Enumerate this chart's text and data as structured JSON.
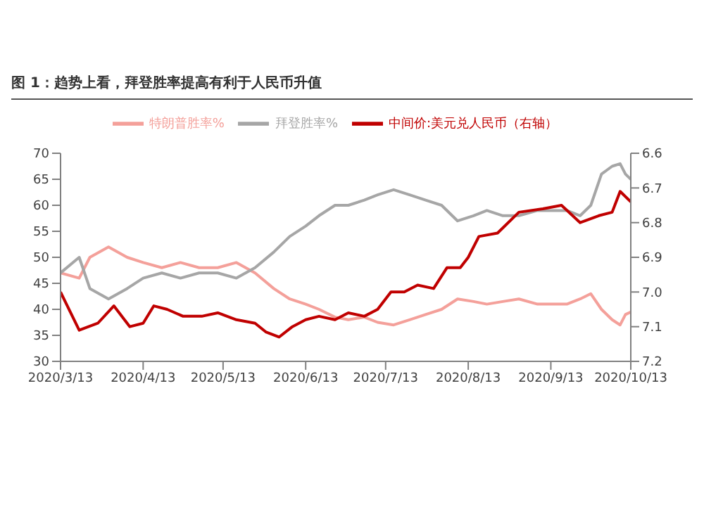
{
  "chart_data": {
    "type": "line",
    "title": "图 1：趋势上看，拜登胜率提高有利于人民币升值",
    "legend": "top",
    "marker": "none",
    "line_style": "solid",
    "xlim": [
      "2020-03-13",
      "2020-10-13"
    ],
    "xticks": [
      {
        "value": "2020-03-13",
        "label": "2020/3/13"
      },
      {
        "value": "2020-04-13",
        "label": "2020/4/13"
      },
      {
        "value": "2020-05-13",
        "label": "2020/5/13"
      },
      {
        "value": "2020-06-13",
        "label": "2020/6/13"
      },
      {
        "value": "2020-07-13",
        "label": "2020/7/13"
      },
      {
        "value": "2020-08-13",
        "label": "2020/8/13"
      },
      {
        "value": "2020-09-13",
        "label": "2020/9/13"
      },
      {
        "value": "2020-10-13",
        "label": "2020/10/13"
      }
    ],
    "ylim": [
      30,
      70
    ],
    "yticks": [
      30,
      35,
      40,
      45,
      50,
      55,
      60,
      65,
      70
    ],
    "y2lim": [
      7.2,
      6.6
    ],
    "y2ticks": [
      6.6,
      6.7,
      6.8,
      6.9,
      {
        "value": 7,
        "label": "7.0"
      },
      7.1,
      7.2
    ],
    "series": [
      {
        "name": "特朗普胜率%",
        "color": "#f4a09a",
        "x": [
          "2020-03-13",
          "2020-03-20",
          "2020-03-24",
          "2020-03-31",
          "2020-04-07",
          "2020-04-13",
          "2020-04-20",
          "2020-04-27",
          "2020-05-04",
          "2020-05-11",
          "2020-05-18",
          "2020-05-25",
          "2020-06-01",
          "2020-06-07",
          "2020-06-13",
          "2020-06-18",
          "2020-06-24",
          "2020-06-29",
          "2020-07-05",
          "2020-07-10",
          "2020-07-16",
          "2020-07-22",
          "2020-07-28",
          "2020-08-03",
          "2020-08-09",
          "2020-08-15",
          "2020-08-20",
          "2020-08-26",
          "2020-09-01",
          "2020-09-08",
          "2020-09-14",
          "2020-09-19",
          "2020-09-24",
          "2020-09-28",
          "2020-10-02",
          "2020-10-06",
          "2020-10-09",
          "2020-10-11",
          "2020-10-13"
        ],
        "values": [
          47,
          46,
          50,
          52,
          50,
          49,
          48,
          49,
          48,
          48,
          49,
          47,
          44,
          42,
          41,
          40,
          38.5,
          38,
          38.5,
          37.5,
          37,
          38,
          39,
          40,
          42,
          41.5,
          41,
          41.5,
          42,
          41,
          41,
          41,
          42,
          43,
          40,
          38,
          37,
          39,
          39.5
        ]
      },
      {
        "name": "拜登胜率%",
        "color": "#a6a6a6",
        "x": [
          "2020-03-13",
          "2020-03-20",
          "2020-03-24",
          "2020-03-31",
          "2020-04-07",
          "2020-04-13",
          "2020-04-20",
          "2020-04-27",
          "2020-05-04",
          "2020-05-11",
          "2020-05-18",
          "2020-05-25",
          "2020-06-01",
          "2020-06-07",
          "2020-06-13",
          "2020-06-18",
          "2020-06-24",
          "2020-06-29",
          "2020-07-05",
          "2020-07-10",
          "2020-07-16",
          "2020-07-22",
          "2020-07-28",
          "2020-08-03",
          "2020-08-09",
          "2020-08-15",
          "2020-08-20",
          "2020-08-26",
          "2020-09-01",
          "2020-09-08",
          "2020-09-14",
          "2020-09-19",
          "2020-09-24",
          "2020-09-28",
          "2020-10-02",
          "2020-10-06",
          "2020-10-09",
          "2020-10-11",
          "2020-10-13"
        ],
        "values": [
          47,
          50,
          44,
          42,
          44,
          46,
          47,
          46,
          47,
          47,
          46,
          48,
          51,
          54,
          56,
          58,
          60,
          60,
          61,
          62,
          63,
          62,
          61,
          60,
          57,
          58,
          59,
          58,
          58,
          59,
          59,
          59,
          58,
          60,
          66,
          67.5,
          68,
          66,
          65
        ]
      },
      {
        "name": "中间价:美元兑人民币（右轴）",
        "color": "#c00000",
        "axis": "y2",
        "x": [
          "2020-03-13",
          "2020-03-20",
          "2020-03-27",
          "2020-04-02",
          "2020-04-08",
          "2020-04-13",
          "2020-04-17",
          "2020-04-22",
          "2020-04-28",
          "2020-05-05",
          "2020-05-11",
          "2020-05-18",
          "2020-05-25",
          "2020-05-29",
          "2020-06-03",
          "2020-06-08",
          "2020-06-13",
          "2020-06-18",
          "2020-06-24",
          "2020-06-29",
          "2020-07-05",
          "2020-07-10",
          "2020-07-15",
          "2020-07-20",
          "2020-07-25",
          "2020-07-31",
          "2020-08-05",
          "2020-08-10",
          "2020-08-13",
          "2020-08-17",
          "2020-08-24",
          "2020-09-01",
          "2020-09-10",
          "2020-09-17",
          "2020-09-24",
          "2020-10-01",
          "2020-10-06",
          "2020-10-09",
          "2020-10-13"
        ],
        "values": [
          7.0,
          7.11,
          7.09,
          7.04,
          7.1,
          7.09,
          7.04,
          7.05,
          7.07,
          7.07,
          7.06,
          7.08,
          7.09,
          7.115,
          7.13,
          7.1,
          7.08,
          7.07,
          7.08,
          7.06,
          7.07,
          7.05,
          7.0,
          7.0,
          6.98,
          6.99,
          6.93,
          6.93,
          6.9,
          6.84,
          6.83,
          6.77,
          6.76,
          6.75,
          6.8,
          6.78,
          6.77,
          6.71,
          6.74
        ]
      }
    ]
  }
}
